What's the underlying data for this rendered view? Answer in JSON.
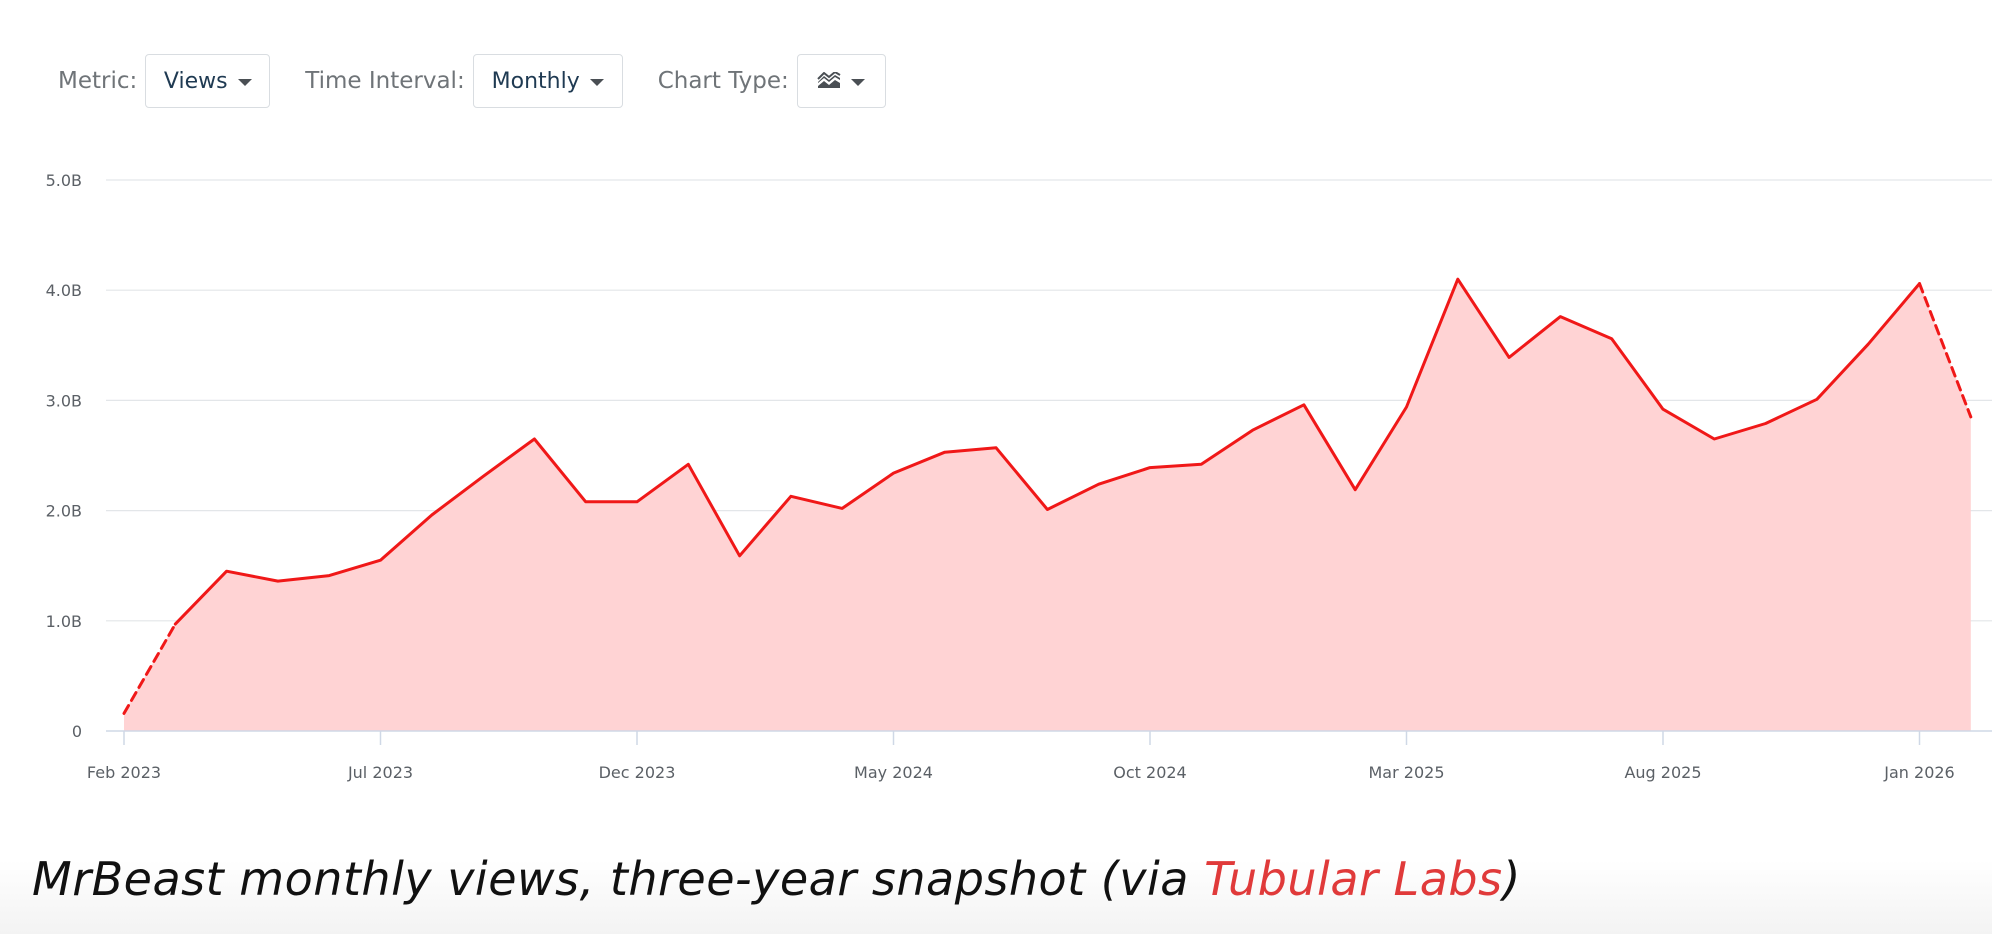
{
  "controls": {
    "metric_label": "Metric:",
    "metric_value": "Views",
    "interval_label": "Time Interval:",
    "interval_value": "Monthly",
    "chart_type_label": "Chart Type:",
    "chart_type_icon": "area-chart-icon"
  },
  "colors": {
    "line": "#f01818",
    "fill": "#ffd3d4",
    "grid": "#e3e6e9",
    "axis_text": "#5b6066",
    "link": "#e03a3a"
  },
  "chart_data": {
    "type": "area",
    "title": "",
    "xlabel": "",
    "ylabel": "",
    "ylim": [
      0,
      5.0
    ],
    "y_ticks": [
      {
        "value": 0,
        "label": "0"
      },
      {
        "value": 1.0,
        "label": "1.0B"
      },
      {
        "value": 2.0,
        "label": "2.0B"
      },
      {
        "value": 3.0,
        "label": "3.0B"
      },
      {
        "value": 4.0,
        "label": "4.0B"
      },
      {
        "value": 5.0,
        "label": "5.0B"
      }
    ],
    "x_ticks": [
      {
        "index": 0,
        "label": "Feb 2023"
      },
      {
        "index": 5,
        "label": "Jul 2023"
      },
      {
        "index": 10,
        "label": "Dec 2023"
      },
      {
        "index": 15,
        "label": "May 2024"
      },
      {
        "index": 20,
        "label": "Oct 2024"
      },
      {
        "index": 25,
        "label": "Mar 2025"
      },
      {
        "index": 30,
        "label": "Aug 2025"
      },
      {
        "index": 35,
        "label": "Jan 2026"
      }
    ],
    "x": [
      "Feb 2023",
      "Mar 2023",
      "Apr 2023",
      "May 2023",
      "Jun 2023",
      "Jul 2023",
      "Aug 2023",
      "Sep 2023",
      "Oct 2023",
      "Nov 2023",
      "Dec 2023",
      "Jan 2024",
      "Feb 2024",
      "Mar 2024",
      "Apr 2024",
      "May 2024",
      "Jun 2024",
      "Jul 2024",
      "Aug 2024",
      "Sep 2024",
      "Oct 2024",
      "Nov 2024",
      "Dec 2024",
      "Jan 2025",
      "Feb 2025",
      "Mar 2025",
      "Apr 2025",
      "May 2025",
      "Jun 2025",
      "Jul 2025",
      "Aug 2025",
      "Sep 2025",
      "Oct 2025",
      "Nov 2025",
      "Dec 2025",
      "Jan 2026",
      "Feb 2026"
    ],
    "series": [
      {
        "values": [
          0.16,
          0.97,
          1.45,
          1.36,
          1.41,
          1.55,
          1.96,
          2.31,
          2.65,
          2.08,
          2.08,
          2.42,
          1.59,
          2.13,
          2.02,
          2.34,
          2.53,
          2.57,
          2.01,
          2.24,
          2.39,
          2.42,
          2.73,
          2.96,
          2.19,
          2.94,
          4.1,
          3.39,
          3.76,
          3.56,
          2.92,
          2.65,
          2.79,
          3.01,
          3.51,
          4.06,
          2.85
        ],
        "partial_start": 1,
        "partial_end": 35
      }
    ],
    "grid": true,
    "legend": "none"
  },
  "caption": {
    "text_before": "MrBeast monthly views, three-year snapshot (via ",
    "link_text": "Tubular Labs",
    "text_after": ")"
  }
}
